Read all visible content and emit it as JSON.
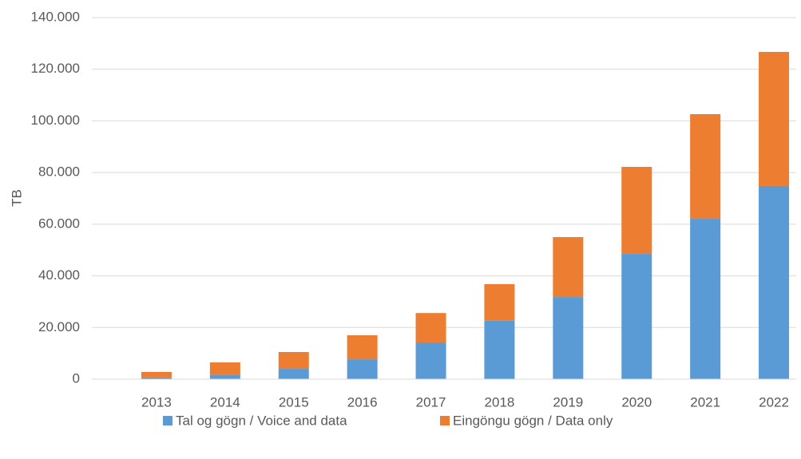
{
  "chart_data": {
    "type": "stacked_bar",
    "y_label": "TB",
    "categories": [
      "2013",
      "2014",
      "2015",
      "2016",
      "2017",
      "2018",
      "2019",
      "2020",
      "2021",
      "2022"
    ],
    "series": [
      {
        "name": "Tal og gögn / Voice and data",
        "color": "#5b9bd5",
        "values": [
          700,
          1800,
          4000,
          7700,
          14200,
          22600,
          31800,
          48500,
          62100,
          74800
        ]
      },
      {
        "name": "Eingöngu gögn / Data only",
        "color": "#ed7d31",
        "values": [
          2100,
          4700,
          6500,
          9300,
          11400,
          14200,
          23200,
          33700,
          40500,
          51900
        ]
      }
    ],
    "ylim": [
      0,
      140000
    ],
    "yticks": [
      0,
      {
        "value": 20000,
        "label": "20.000"
      },
      {
        "value": 40000,
        "label": "40.000"
      },
      {
        "value": 60000,
        "label": "60.000"
      },
      {
        "value": 80000,
        "label": "80.000"
      },
      {
        "value": 100000,
        "label": "100.000"
      },
      {
        "value": 120000,
        "label": "120.000"
      },
      {
        "value": 140000,
        "label": "140.000"
      }
    ],
    "grid": true,
    "legend": "bottom"
  }
}
